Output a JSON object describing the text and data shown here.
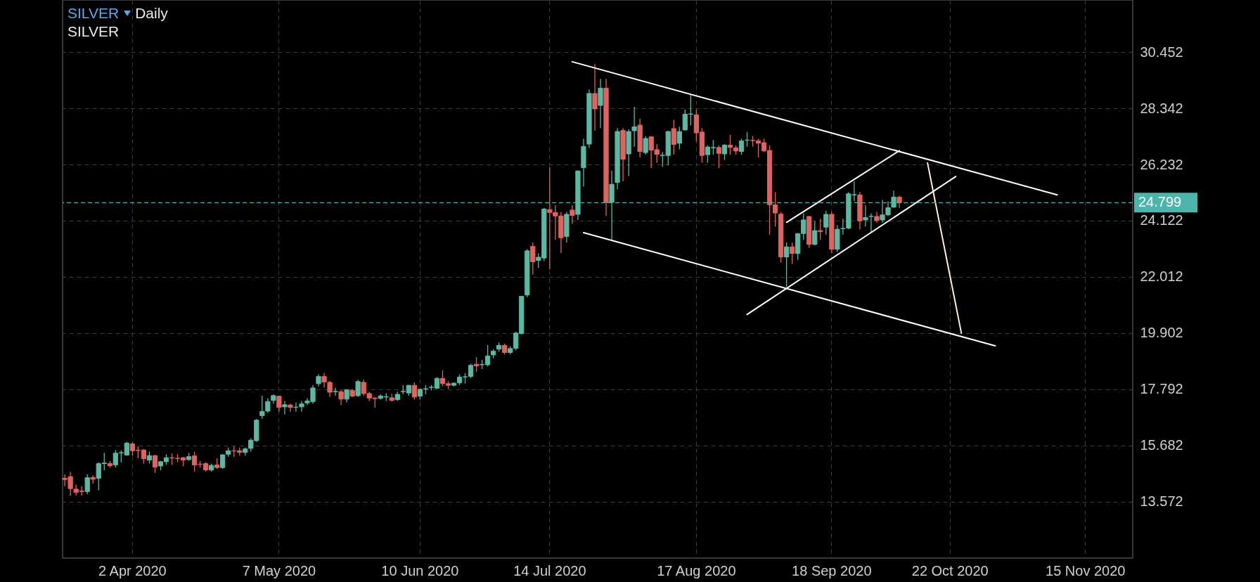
{
  "chart_data": {
    "type": "candlestick",
    "title": "SILVER",
    "subtitle": "SILVER",
    "annotations": [
      "Daily"
    ],
    "categories": [
      null,
      null,
      null,
      null,
      null,
      null,
      null,
      null,
      null,
      null,
      null,
      null,
      "2 Apr 2020",
      null,
      null,
      null,
      null,
      null,
      null,
      null,
      null,
      null,
      null,
      null,
      null,
      null,
      null,
      null,
      null,
      null,
      null,
      null,
      null,
      null,
      null,
      null,
      null,
      null,
      "7 May 2020",
      null,
      null,
      null,
      null,
      null,
      null,
      null,
      null,
      null,
      null,
      null,
      null,
      null,
      null,
      null,
      null,
      null,
      null,
      null,
      null,
      null,
      null,
      null,
      null,
      "10 Jun 2020",
      null,
      null,
      null,
      null,
      null,
      null,
      null,
      null,
      null,
      null,
      null,
      null,
      null,
      null,
      null,
      null,
      null,
      null,
      null,
      null,
      null,
      null,
      "14 Jul 2020",
      null,
      null,
      null,
      null,
      null,
      null,
      null,
      null,
      null,
      null,
      null,
      null,
      null,
      null,
      null,
      null,
      null,
      null,
      null,
      null,
      null,
      null,
      null,
      null,
      null,
      "17 Aug 2020",
      null,
      null,
      null,
      null,
      null,
      null,
      null,
      null,
      null,
      null,
      null,
      null,
      null,
      null,
      null,
      null,
      null,
      null,
      null,
      null,
      null,
      null,
      null,
      "18 Sep 2020",
      null,
      null,
      null,
      null,
      null,
      null,
      null,
      null,
      null,
      null,
      null,
      null,
      null,
      null,
      null,
      null,
      null,
      null,
      null,
      null,
      "22 Oct 2020",
      null,
      null,
      null,
      null,
      null,
      null,
      null,
      null,
      null,
      null,
      null,
      null,
      null,
      null,
      null,
      null,
      null,
      null,
      null,
      null,
      null,
      null,
      null,
      "15 Nov 2020",
      null,
      null,
      null,
      null,
      null,
      null,
      null,
      null
    ],
    "ohlc": [
      [
        14.45,
        14.6,
        14.15,
        14.4
      ],
      [
        14.51,
        14.69,
        13.79,
        14.06
      ],
      [
        14.04,
        14.2,
        13.8,
        13.92
      ],
      [
        13.97,
        14.15,
        13.8,
        13.95
      ],
      [
        13.95,
        14.6,
        13.85,
        14.47
      ],
      [
        14.48,
        14.55,
        14.25,
        14.41
      ],
      [
        14.45,
        15.05,
        14.0,
        15.0
      ],
      [
        15.0,
        15.4,
        14.75,
        15.02
      ],
      [
        15.0,
        15.1,
        14.85,
        14.92
      ],
      [
        14.95,
        15.5,
        14.85,
        15.39
      ],
      [
        15.4,
        15.5,
        15.05,
        15.41
      ],
      [
        15.32,
        15.82,
        15.3,
        15.77
      ],
      [
        15.74,
        15.8,
        15.3,
        15.48
      ],
      [
        15.5,
        15.65,
        15.2,
        15.49
      ],
      [
        15.51,
        15.55,
        15.0,
        15.18
      ],
      [
        15.13,
        15.45,
        15.0,
        15.3
      ],
      [
        15.3,
        15.32,
        14.65,
        14.87
      ],
      [
        14.91,
        15.1,
        14.75,
        15.07
      ],
      [
        15.07,
        15.35,
        14.95,
        15.22
      ],
      [
        15.22,
        15.38,
        14.95,
        15.21
      ],
      [
        15.2,
        15.35,
        15.05,
        15.19
      ],
      [
        15.22,
        15.25,
        14.9,
        15.13
      ],
      [
        15.15,
        15.4,
        15.1,
        15.26
      ],
      [
        15.29,
        15.45,
        14.7,
        14.95
      ],
      [
        14.98,
        15.1,
        14.85,
        14.97
      ],
      [
        15.0,
        15.05,
        14.7,
        14.76
      ],
      [
        14.76,
        15.0,
        14.7,
        14.93
      ],
      [
        14.95,
        15.2,
        14.8,
        14.85
      ],
      [
        14.85,
        15.35,
        14.8,
        15.33
      ],
      [
        15.35,
        15.6,
        15.25,
        15.48
      ],
      [
        15.48,
        15.65,
        15.25,
        15.47
      ],
      [
        15.48,
        15.6,
        15.3,
        15.42
      ],
      [
        15.42,
        15.6,
        15.3,
        15.55
      ],
      [
        15.57,
        15.95,
        15.45,
        15.88
      ],
      [
        15.86,
        16.68,
        15.81,
        16.63
      ],
      [
        16.8,
        17.55,
        16.68,
        16.96
      ],
      [
        16.97,
        17.45,
        16.9,
        17.33
      ],
      [
        17.37,
        17.6,
        17.25,
        17.55
      ],
      [
        17.53,
        17.55,
        16.95,
        17.11
      ],
      [
        17.13,
        17.35,
        16.85,
        17.21
      ],
      [
        17.2,
        17.25,
        16.95,
        17.11
      ],
      [
        17.11,
        17.3,
        16.95,
        17.12
      ],
      [
        17.13,
        17.35,
        16.95,
        17.24
      ],
      [
        17.28,
        17.45,
        17.2,
        17.35
      ],
      [
        17.33,
        17.95,
        17.25,
        17.84
      ],
      [
        18.0,
        18.35,
        17.9,
        18.27
      ],
      [
        18.27,
        18.4,
        17.85,
        18.06
      ],
      [
        18.05,
        18.1,
        17.5,
        17.68
      ],
      [
        17.7,
        17.85,
        17.55,
        17.71
      ],
      [
        17.7,
        17.75,
        17.2,
        17.42
      ],
      [
        17.42,
        17.8,
        17.3,
        17.77
      ],
      [
        17.75,
        17.8,
        17.5,
        17.53
      ],
      [
        17.55,
        18.15,
        17.5,
        18.08
      ],
      [
        18.05,
        18.15,
        17.55,
        17.63
      ],
      [
        17.63,
        17.7,
        17.35,
        17.46
      ],
      [
        17.46,
        17.5,
        17.1,
        17.44
      ],
      [
        17.45,
        17.6,
        17.4,
        17.54
      ],
      [
        17.5,
        17.65,
        17.35,
        17.51
      ],
      [
        17.47,
        17.62,
        17.33,
        17.37
      ],
      [
        17.4,
        17.7,
        17.35,
        17.6
      ],
      [
        17.7,
        17.95,
        17.6,
        17.71
      ],
      [
        17.65,
        17.95,
        17.55,
        17.94
      ],
      [
        17.94,
        18.05,
        17.4,
        17.5
      ],
      [
        17.53,
        17.8,
        17.4,
        17.79
      ],
      [
        17.8,
        17.95,
        17.6,
        17.81
      ],
      [
        17.86,
        17.95,
        17.75,
        17.87
      ],
      [
        17.83,
        18.25,
        17.8,
        18.2
      ],
      [
        18.2,
        18.5,
        17.9,
        18.0
      ],
      [
        18.0,
        18.1,
        17.8,
        17.94
      ],
      [
        17.94,
        18.05,
        17.9,
        18.02
      ],
      [
        18.03,
        18.35,
        17.95,
        18.25
      ],
      [
        18.25,
        18.4,
        18.0,
        18.26
      ],
      [
        18.27,
        18.75,
        18.2,
        18.69
      ],
      [
        18.73,
        19.0,
        18.45,
        18.67
      ],
      [
        18.71,
        18.9,
        18.55,
        18.72
      ],
      [
        18.71,
        19.45,
        18.65,
        19.04
      ],
      [
        19.08,
        19.3,
        18.95,
        19.22
      ],
      [
        19.3,
        19.55,
        19.2,
        19.44
      ],
      [
        19.44,
        19.5,
        19.1,
        19.17
      ],
      [
        19.17,
        19.4,
        19.1,
        19.32
      ],
      [
        19.33,
        19.95,
        19.25,
        19.9
      ],
      [
        19.88,
        21.3,
        19.85,
        21.28
      ],
      [
        21.33,
        23.05,
        21.25,
        22.99
      ],
      [
        23.16,
        23.3,
        22.1,
        22.58
      ],
      [
        22.63,
        22.9,
        22.35,
        22.75
      ],
      [
        22.72,
        24.6,
        22.6,
        24.56
      ],
      [
        24.54,
        26.13,
        22.3,
        24.43
      ],
      [
        24.43,
        24.7,
        23.4,
        24.3
      ],
      [
        24.3,
        24.45,
        22.91,
        23.48
      ],
      [
        23.53,
        24.45,
        23.3,
        24.36
      ],
      [
        24.52,
        24.7,
        24.0,
        24.32
      ],
      [
        24.36,
        26.0,
        24.15,
        25.99
      ],
      [
        26.11,
        27.2,
        25.4,
        26.91
      ],
      [
        27.0,
        29.05,
        26.85,
        28.9
      ],
      [
        28.9,
        30.0,
        27.5,
        28.32
      ],
      [
        28.45,
        29.45,
        27.6,
        29.1
      ],
      [
        29.1,
        29.45,
        24.3,
        24.8
      ],
      [
        24.81,
        26.0,
        23.4,
        25.49
      ],
      [
        25.56,
        27.6,
        25.3,
        27.47
      ],
      [
        27.51,
        27.6,
        25.6,
        26.43
      ],
      [
        26.63,
        27.55,
        25.8,
        27.47
      ],
      [
        27.5,
        28.4,
        26.9,
        27.65
      ],
      [
        27.71,
        27.95,
        26.5,
        26.72
      ],
      [
        26.68,
        27.3,
        26.6,
        27.21
      ],
      [
        27.27,
        27.3,
        26.1,
        26.77
      ],
      [
        26.79,
        27.0,
        26.3,
        26.61
      ],
      [
        26.57,
        26.7,
        26.15,
        26.58
      ],
      [
        26.57,
        27.5,
        26.2,
        27.47
      ],
      [
        27.58,
        27.9,
        26.6,
        26.98
      ],
      [
        27.03,
        27.65,
        26.8,
        27.47
      ],
      [
        27.53,
        28.3,
        27.5,
        28.12
      ],
      [
        28.12,
        28.85,
        27.7,
        28.13
      ],
      [
        28.1,
        28.3,
        27.1,
        27.42
      ],
      [
        27.45,
        27.6,
        26.3,
        26.57
      ],
      [
        26.6,
        26.95,
        26.3,
        26.89
      ],
      [
        26.86,
        27.15,
        26.6,
        26.87
      ],
      [
        26.87,
        26.95,
        26.1,
        26.65
      ],
      [
        26.63,
        27.0,
        26.4,
        26.96
      ],
      [
        26.96,
        27.35,
        26.6,
        26.87
      ],
      [
        26.86,
        26.95,
        26.6,
        26.74
      ],
      [
        26.72,
        27.2,
        26.6,
        27.12
      ],
      [
        27.14,
        27.45,
        26.9,
        27.15
      ],
      [
        27.14,
        27.3,
        26.9,
        27.13
      ],
      [
        27.12,
        27.2,
        26.5,
        27.03
      ],
      [
        27.05,
        27.2,
        26.7,
        26.74
      ],
      [
        26.76,
        26.95,
        23.6,
        24.72
      ],
      [
        24.72,
        25.2,
        23.9,
        24.41
      ],
      [
        24.37,
        24.45,
        22.55,
        22.76
      ],
      [
        22.76,
        23.3,
        21.64,
        23.14
      ],
      [
        23.14,
        23.3,
        22.5,
        22.89
      ],
      [
        22.89,
        23.65,
        22.65,
        23.64
      ],
      [
        23.64,
        24.4,
        23.4,
        24.15
      ],
      [
        24.28,
        24.3,
        23.1,
        23.23
      ],
      [
        23.23,
        24.1,
        23.2,
        23.75
      ],
      [
        23.75,
        24.2,
        23.4,
        23.71
      ],
      [
        23.88,
        24.5,
        23.6,
        24.36
      ],
      [
        24.36,
        24.45,
        22.9,
        23.05
      ],
      [
        23.05,
        23.95,
        22.95,
        23.8
      ],
      [
        23.82,
        24.2,
        23.6,
        23.83
      ],
      [
        23.84,
        25.2,
        23.8,
        25.13
      ],
      [
        25.09,
        25.6,
        24.85,
        25.1
      ],
      [
        25.09,
        25.2,
        23.8,
        24.11
      ],
      [
        24.15,
        24.7,
        23.9,
        24.24
      ],
      [
        24.28,
        24.4,
        23.7,
        24.29
      ],
      [
        24.28,
        24.45,
        24.05,
        24.13
      ],
      [
        24.15,
        24.9,
        24.05,
        24.34
      ],
      [
        24.34,
        24.85,
        24.3,
        24.61
      ],
      [
        24.63,
        25.25,
        24.6,
        25.01
      ],
      [
        25.01,
        25.05,
        24.6,
        24.8
      ],
      null,
      null,
      null,
      null,
      null,
      null,
      null,
      null,
      null,
      null,
      null,
      null,
      null,
      null,
      null,
      null,
      null,
      null,
      null,
      null,
      null,
      null,
      null,
      null,
      null,
      null,
      null,
      null,
      null,
      null,
      null,
      null,
      null,
      null,
      null,
      null,
      null,
      null,
      null,
      null,
      null
    ],
    "ylim": [
      11.45,
      32.41
    ],
    "yticks": [
      13.572,
      15.682,
      17.792,
      19.902,
      22.012,
      24.122,
      26.232,
      28.342,
      30.452
    ],
    "grid": true,
    "ref_lines": [
      {
        "axis": "y",
        "value": 24.799,
        "label": "24.799",
        "color": "#4db6ac",
        "line_style": "dashed"
      }
    ],
    "series": [
      {
        "type": "line",
        "color": "#ffffff",
        "values": [
          null,
          null,
          null,
          null,
          null,
          null,
          null,
          null,
          null,
          null,
          null,
          null,
          null,
          null,
          null,
          null,
          null,
          null,
          null,
          null,
          null,
          null,
          null,
          null,
          null,
          null,
          null,
          null,
          null,
          null,
          null,
          null,
          null,
          null,
          null,
          null,
          null,
          null,
          null,
          null,
          null,
          null,
          null,
          null,
          null,
          null,
          null,
          null,
          null,
          null,
          null,
          null,
          null,
          null,
          null,
          null,
          null,
          null,
          null,
          null,
          null,
          null,
          null,
          null,
          null,
          null,
          null,
          null,
          null,
          null,
          null,
          null,
          null,
          null,
          null,
          null,
          null,
          null,
          null,
          null,
          null,
          null,
          null,
          null,
          null,
          null,
          null,
          null,
          null,
          null,
          30.09,
          null,
          null,
          null,
          null,
          null,
          null,
          null,
          null,
          null,
          null,
          null,
          null,
          null,
          null,
          null,
          null,
          null,
          null,
          null,
          null,
          null,
          null,
          null,
          null,
          null,
          null,
          null,
          null,
          null,
          null,
          null,
          null,
          null,
          null,
          null,
          null,
          null,
          null,
          null,
          null,
          null,
          null,
          null,
          null,
          null,
          null,
          null,
          null,
          null,
          null,
          null,
          null,
          null,
          null,
          null,
          null,
          null,
          null,
          null,
          null,
          null,
          null,
          null,
          null,
          null,
          null,
          null,
          null,
          null,
          null,
          null,
          null,
          null,
          null,
          null,
          null,
          null,
          null,
          null,
          null,
          null,
          null,
          null,
          null,
          null,
          25.09,
          null,
          null,
          null,
          null,
          null,
          null,
          null,
          null,
          null,
          null,
          null,
          null,
          null
        ]
      },
      {
        "type": "line",
        "color": "#ffffff",
        "values": [
          null,
          null,
          null,
          null,
          null,
          null,
          null,
          null,
          null,
          null,
          null,
          null,
          null,
          null,
          null,
          null,
          null,
          null,
          null,
          null,
          null,
          null,
          null,
          null,
          null,
          null,
          null,
          null,
          null,
          null,
          null,
          null,
          null,
          null,
          null,
          null,
          null,
          null,
          null,
          null,
          null,
          null,
          null,
          null,
          null,
          null,
          null,
          null,
          null,
          null,
          null,
          null,
          null,
          null,
          null,
          null,
          null,
          null,
          null,
          null,
          null,
          null,
          null,
          null,
          null,
          null,
          null,
          null,
          null,
          null,
          null,
          null,
          null,
          null,
          null,
          null,
          null,
          null,
          null,
          null,
          null,
          null,
          null,
          null,
          null,
          null,
          null,
          null,
          null,
          null,
          null,
          null,
          23.67,
          null,
          null,
          null,
          null,
          null,
          null,
          null,
          null,
          null,
          null,
          null,
          null,
          null,
          null,
          null,
          null,
          null,
          null,
          null,
          null,
          null,
          null,
          null,
          null,
          null,
          null,
          null,
          null,
          null,
          null,
          null,
          null,
          null,
          null,
          null,
          null,
          null,
          null,
          null,
          null,
          null,
          null,
          null,
          null,
          null,
          null,
          null,
          null,
          null,
          null,
          null,
          null,
          null,
          null,
          null,
          null,
          null,
          null,
          null,
          null,
          null,
          null,
          null,
          null,
          null,
          null,
          null,
          null,
          null,
          null,
          null,
          null,
          19.42,
          null,
          null,
          null,
          null,
          null,
          null,
          null,
          null,
          null,
          null,
          null,
          null,
          null,
          null,
          null,
          null,
          null,
          null,
          null,
          null,
          null,
          null,
          null,
          null
        ]
      },
      {
        "type": "line",
        "color": "#ffffff",
        "values": [
          null,
          null,
          null,
          null,
          null,
          null,
          null,
          null,
          null,
          null,
          null,
          null,
          null,
          null,
          null,
          null,
          null,
          null,
          null,
          null,
          null,
          null,
          null,
          null,
          null,
          null,
          null,
          null,
          null,
          null,
          null,
          null,
          null,
          null,
          null,
          null,
          null,
          null,
          null,
          null,
          null,
          null,
          null,
          null,
          null,
          null,
          null,
          null,
          null,
          null,
          null,
          null,
          null,
          null,
          null,
          null,
          null,
          null,
          null,
          null,
          null,
          null,
          null,
          null,
          null,
          null,
          null,
          null,
          null,
          null,
          null,
          null,
          null,
          null,
          null,
          null,
          null,
          null,
          null,
          null,
          null,
          null,
          null,
          null,
          null,
          null,
          null,
          null,
          null,
          null,
          null,
          null,
          null,
          null,
          null,
          null,
          null,
          null,
          null,
          null,
          null,
          null,
          null,
          null,
          null,
          null,
          null,
          null,
          null,
          null,
          null,
          null,
          null,
          null,
          null,
          null,
          null,
          null,
          null,
          null,
          null,
          20.6,
          null,
          null,
          null,
          null,
          null,
          null,
          null,
          null,
          null,
          null,
          null,
          null,
          null,
          null,
          null,
          null,
          null,
          null,
          null,
          null,
          null,
          null,
          null,
          null,
          null,
          null,
          null,
          null,
          null,
          null,
          null,
          null,
          null,
          null,
          null,
          null,
          25.78,
          null,
          null,
          null,
          null,
          null,
          null,
          null,
          null,
          null,
          null,
          null,
          null,
          null,
          null,
          null,
          null,
          null,
          null,
          null,
          null,
          null,
          null,
          null,
          null,
          null,
          null,
          null,
          null,
          null,
          null,
          null
        ]
      },
      {
        "type": "line",
        "color": "#ffffff",
        "values": [
          null,
          null,
          null,
          null,
          null,
          null,
          null,
          null,
          null,
          null,
          null,
          null,
          null,
          null,
          null,
          null,
          null,
          null,
          null,
          null,
          null,
          null,
          null,
          null,
          null,
          null,
          null,
          null,
          null,
          null,
          null,
          null,
          null,
          null,
          null,
          null,
          null,
          null,
          null,
          null,
          null,
          null,
          null,
          null,
          null,
          null,
          null,
          null,
          null,
          null,
          null,
          null,
          null,
          null,
          null,
          null,
          null,
          null,
          null,
          null,
          null,
          null,
          null,
          null,
          null,
          null,
          null,
          null,
          null,
          null,
          null,
          null,
          null,
          null,
          null,
          null,
          null,
          null,
          null,
          null,
          null,
          null,
          null,
          null,
          null,
          null,
          null,
          null,
          null,
          null,
          null,
          null,
          null,
          null,
          null,
          null,
          null,
          null,
          null,
          null,
          null,
          null,
          null,
          null,
          null,
          null,
          null,
          null,
          null,
          null,
          null,
          null,
          null,
          null,
          null,
          null,
          null,
          null,
          null,
          null,
          null,
          null,
          null,
          null,
          null,
          null,
          null,
          null,
          24.06,
          null,
          null,
          null,
          null,
          null,
          null,
          null,
          null,
          null,
          null,
          null,
          null,
          null,
          null,
          null,
          null,
          null,
          null,
          null,
          26.75,
          null,
          null,
          null,
          null,
          null,
          null,
          null,
          null,
          null,
          null,
          null,
          null,
          null,
          null,
          null,
          null,
          null,
          null,
          null,
          null,
          null,
          null,
          null,
          null,
          null,
          null,
          null,
          null,
          null,
          null,
          null,
          null,
          null,
          null,
          null,
          null,
          null,
          null,
          null,
          null,
          null
        ]
      },
      {
        "type": "line",
        "color": "#fff0dc",
        "values": [
          null,
          null,
          null,
          null,
          null,
          null,
          null,
          null,
          null,
          null,
          null,
          null,
          null,
          null,
          null,
          null,
          null,
          null,
          null,
          null,
          null,
          null,
          null,
          null,
          null,
          null,
          null,
          null,
          null,
          null,
          null,
          null,
          null,
          null,
          null,
          null,
          null,
          null,
          null,
          null,
          null,
          null,
          null,
          null,
          null,
          null,
          null,
          null,
          null,
          null,
          null,
          null,
          null,
          null,
          null,
          null,
          null,
          null,
          null,
          null,
          null,
          null,
          null,
          null,
          null,
          null,
          null,
          null,
          null,
          null,
          null,
          null,
          null,
          null,
          null,
          null,
          null,
          null,
          null,
          null,
          null,
          null,
          null,
          null,
          null,
          null,
          null,
          null,
          null,
          null,
          null,
          null,
          null,
          null,
          null,
          null,
          null,
          null,
          null,
          null,
          null,
          null,
          null,
          null,
          null,
          null,
          null,
          null,
          null,
          null,
          null,
          null,
          null,
          null,
          null,
          null,
          null,
          null,
          null,
          null,
          null,
          null,
          null,
          null,
          null,
          null,
          null,
          null,
          null,
          null,
          null,
          null,
          null,
          null,
          null,
          null,
          null,
          null,
          null,
          null,
          null,
          null,
          null,
          null,
          null,
          null,
          null,
          null,
          null,
          null,
          null,
          null,
          null,
          26.29,
          null,
          null,
          null,
          null,
          null,
          19.9,
          null,
          null,
          null,
          null,
          null,
          null,
          null,
          null,
          null,
          null,
          null,
          null,
          null,
          null,
          null,
          null,
          null,
          null,
          null,
          null,
          null,
          null,
          null,
          null,
          null,
          null,
          null,
          null,
          null,
          null
        ]
      }
    ]
  }
}
